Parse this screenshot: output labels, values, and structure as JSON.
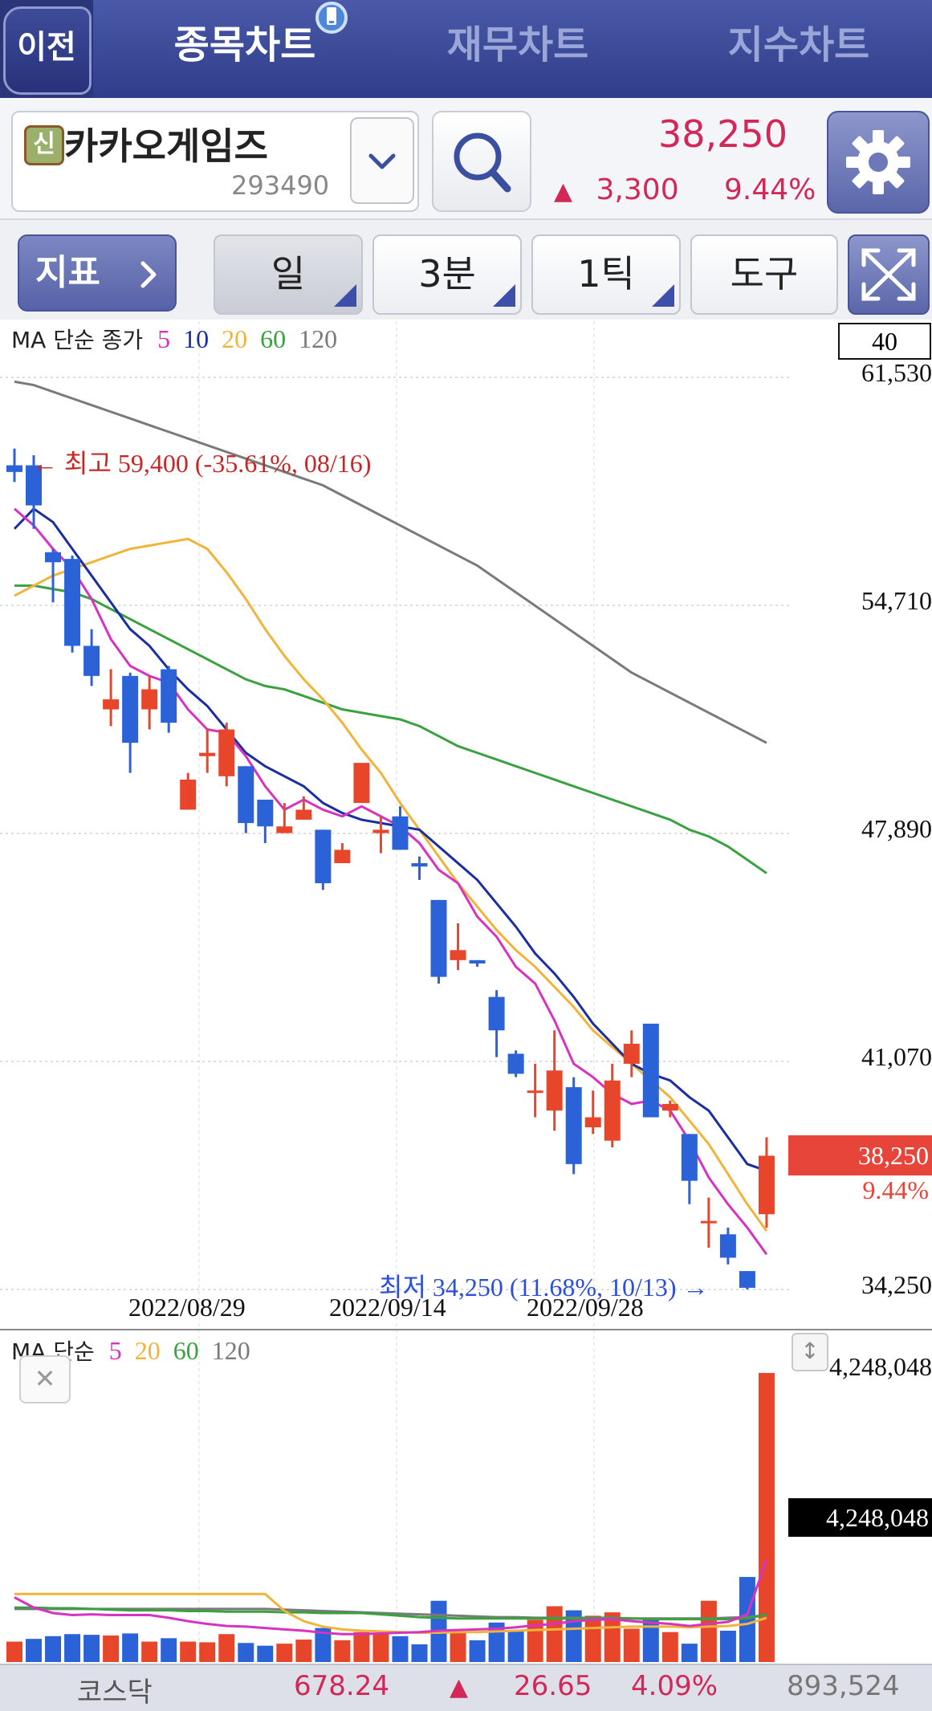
{
  "nav": {
    "back_label": "이전",
    "tabs": [
      "종목차트",
      "재무차트",
      "지수차트"
    ]
  },
  "stock": {
    "badge": "신",
    "name": "카카오게임즈",
    "code": "293490",
    "price": "38,250",
    "change_arrow": "▲",
    "change": "3,300",
    "change_pct": "9.44%"
  },
  "toolbar": {
    "indicator": "지표",
    "period": "일",
    "minute": "3분",
    "tick": "1틱",
    "tools": "도구"
  },
  "colors": {
    "up": "#e8462b",
    "down": "#2b62d8",
    "ma5": "#d633c0",
    "ma10": "#1b2ea0",
    "ma20": "#f0b43a",
    "ma60": "#3aa040",
    "ma120": "#7a7a7a"
  },
  "price_panel": {
    "legend_prefix": "MA 단순 종가",
    "legend_periods": [
      "5",
      "10",
      "20",
      "60",
      "120"
    ],
    "count_box": "40",
    "y_labels": [
      "61,530",
      "54,710",
      "47,890",
      "41,070",
      "34,250"
    ],
    "current_label": "38,250",
    "current_pct": "9.44%",
    "high_note": "최고 59,400 (-35.61%, 08/16)",
    "low_note": "최저 34,250 (11.68%, 10/13) →",
    "x_labels": [
      "2022/08/29",
      "2022/09/14",
      "2022/09/28"
    ]
  },
  "volume_panel": {
    "legend_prefix": "MA 단순",
    "legend_periods": [
      "5",
      "20",
      "60",
      "120"
    ],
    "top_label": "4,248,048",
    "current_label": "4,248,048",
    "close_symbol": "✕",
    "handle_symbol": "↕"
  },
  "chart_data": {
    "type": "candlestick",
    "ylim": [
      34250,
      61530
    ],
    "candles": [
      {
        "o": 58900,
        "h": 59400,
        "l": 58400,
        "c": 58700
      },
      {
        "o": 58900,
        "h": 59200,
        "l": 57000,
        "c": 57700
      },
      {
        "o": 56300,
        "h": 56400,
        "l": 54800,
        "c": 56000
      },
      {
        "o": 56100,
        "h": 56200,
        "l": 53300,
        "c": 53500
      },
      {
        "o": 53500,
        "h": 54000,
        "l": 52300,
        "c": 52600
      },
      {
        "o": 51600,
        "h": 52800,
        "l": 51100,
        "c": 51900
      },
      {
        "o": 52600,
        "h": 52700,
        "l": 49700,
        "c": 50600
      },
      {
        "o": 51600,
        "h": 52600,
        "l": 51000,
        "c": 52200
      },
      {
        "o": 52800,
        "h": 52900,
        "l": 50900,
        "c": 51200
      },
      {
        "o": 48600,
        "h": 49700,
        "l": 48600,
        "c": 49500
      },
      {
        "o": 50200,
        "h": 51000,
        "l": 49700,
        "c": 50300
      },
      {
        "o": 49600,
        "h": 51200,
        "l": 49300,
        "c": 51000
      },
      {
        "o": 49900,
        "h": 49900,
        "l": 47900,
        "c": 48200
      },
      {
        "o": 48900,
        "h": 48800,
        "l": 47600,
        "c": 48100
      },
      {
        "o": 47900,
        "h": 48800,
        "l": 47900,
        "c": 48100
      },
      {
        "o": 48300,
        "h": 49000,
        "l": 48300,
        "c": 48600
      },
      {
        "o": 48000,
        "h": 48000,
        "l": 46200,
        "c": 46400
      },
      {
        "o": 47000,
        "h": 47600,
        "l": 47000,
        "c": 47400
      },
      {
        "o": 48800,
        "h": 49900,
        "l": 48800,
        "c": 50000
      },
      {
        "o": 47900,
        "h": 48400,
        "l": 47300,
        "c": 48000
      },
      {
        "o": 48400,
        "h": 48700,
        "l": 47400,
        "c": 47400
      },
      {
        "o": 47000,
        "h": 47200,
        "l": 46500,
        "c": 46900
      },
      {
        "o": 45900,
        "h": 45900,
        "l": 43400,
        "c": 43600
      },
      {
        "o": 44100,
        "h": 45200,
        "l": 43800,
        "c": 44400
      },
      {
        "o": 44100,
        "h": 44100,
        "l": 43900,
        "c": 44000
      },
      {
        "o": 43000,
        "h": 43200,
        "l": 41200,
        "c": 42000
      },
      {
        "o": 41300,
        "h": 41400,
        "l": 40600,
        "c": 40700
      },
      {
        "o": 40200,
        "h": 41000,
        "l": 39400,
        "c": 40200
      },
      {
        "o": 39600,
        "h": 42000,
        "l": 39000,
        "c": 40800
      },
      {
        "o": 40300,
        "h": 40600,
        "l": 37700,
        "c": 38000
      },
      {
        "o": 39100,
        "h": 40200,
        "l": 38900,
        "c": 39400
      },
      {
        "o": 38700,
        "h": 41000,
        "l": 38500,
        "c": 40500
      },
      {
        "o": 41000,
        "h": 42000,
        "l": 40600,
        "c": 41600
      },
      {
        "o": 42200,
        "h": 42200,
        "l": 39400,
        "c": 39400
      },
      {
        "o": 39600,
        "h": 39900,
        "l": 39400,
        "c": 39800
      },
      {
        "o": 38900,
        "h": 38900,
        "l": 36800,
        "c": 37500
      },
      {
        "o": 36300,
        "h": 37000,
        "l": 35500,
        "c": 36300
      },
      {
        "o": 35900,
        "h": 36100,
        "l": 35000,
        "c": 35200
      },
      {
        "o": 34800,
        "h": 34800,
        "l": 34250,
        "c": 34300
      },
      {
        "o": 36500,
        "h": 38800,
        "l": 36100,
        "c": 38250
      }
    ],
    "ma5": [
      57600,
      57100,
      56400,
      55800,
      54900,
      53700,
      52900,
      52600,
      52400,
      51600,
      51000,
      50900,
      50200,
      49300,
      48600,
      48900,
      48600,
      48400,
      48700,
      48400,
      48100,
      47600,
      46800,
      46400,
      45400,
      44800,
      43900,
      43400,
      42300,
      41000,
      40600,
      40100,
      39800,
      39900,
      39600,
      38700,
      37600,
      36800,
      36100,
      35300
    ],
    "ma10": [
      57000,
      57600,
      57200,
      56400,
      55600,
      54800,
      54000,
      53500,
      52800,
      52200,
      51700,
      51000,
      50300,
      49900,
      49600,
      49300,
      48800,
      48500,
      48300,
      48200,
      48100,
      48000,
      47500,
      47000,
      46500,
      45800,
      45100,
      44300,
      43700,
      43000,
      42200,
      41600,
      41000,
      40700,
      40500,
      40000,
      39600,
      38800,
      38000,
      37800
    ],
    "ma20": [
      55000,
      55300,
      55600,
      55800,
      56000,
      56200,
      56400,
      56500,
      56600,
      56700,
      56400,
      55700,
      54900,
      54000,
      53200,
      52500,
      51900,
      51200,
      50400,
      49700,
      48800,
      48000,
      47200,
      46400,
      45700,
      45000,
      44400,
      43900,
      43300,
      42700,
      42000,
      41500,
      41000,
      40500,
      40000,
      39300,
      38600,
      37700,
      36800,
      36000
    ],
    "ma60": [
      55300,
      55300,
      55200,
      55100,
      54900,
      54600,
      54300,
      54000,
      53700,
      53400,
      53100,
      52800,
      52500,
      52300,
      52200,
      52000,
      51800,
      51600,
      51500,
      51400,
      51300,
      51100,
      50800,
      50500,
      50300,
      50100,
      49900,
      49700,
      49500,
      49300,
      49100,
      48900,
      48700,
      48500,
      48300,
      48000,
      47800,
      47500,
      47100,
      46700
    ],
    "ma120": [
      61400,
      61300,
      61100,
      60900,
      60700,
      60500,
      60300,
      60100,
      59900,
      59700,
      59500,
      59300,
      59100,
      58900,
      58700,
      58500,
      58300,
      58000,
      57700,
      57400,
      57100,
      56800,
      56500,
      56200,
      55900,
      55500,
      55100,
      54700,
      54300,
      53900,
      53500,
      53100,
      52700,
      52400,
      52100,
      51800,
      51500,
      51200,
      50900,
      50600
    ],
    "volume": {
      "max": 4248048,
      "values": [
        300000,
        340000,
        380000,
        410000,
        400000,
        390000,
        420000,
        300000,
        350000,
        300000,
        290000,
        410000,
        280000,
        240000,
        270000,
        330000,
        500000,
        320000,
        440000,
        420000,
        380000,
        260000,
        900000,
        450000,
        320000,
        580000,
        460000,
        620000,
        820000,
        760000,
        680000,
        730000,
        490000,
        620000,
        440000,
        270000,
        900000,
        460000,
        1250000,
        4248048
      ],
      "ma5": [
        950000,
        800000,
        720000,
        690000,
        700000,
        690000,
        690000,
        690000,
        650000,
        600000,
        560000,
        530000,
        520000,
        500000,
        480000,
        460000,
        430000,
        410000,
        410000,
        420000,
        430000,
        440000,
        460000,
        470000,
        480000,
        490000,
        510000,
        540000,
        560000,
        600000,
        620000,
        630000,
        600000,
        580000,
        560000,
        530000,
        560000,
        590000,
        700000,
        1500000
      ],
      "ma20": [
        1000000,
        1000000,
        1000000,
        1000000,
        1000000,
        1000000,
        1000000,
        1000000,
        1000000,
        1000000,
        1000000,
        1000000,
        1000000,
        1000000,
        750000,
        600000,
        520000,
        480000,
        460000,
        450000,
        440000,
        430000,
        430000,
        440000,
        440000,
        450000,
        460000,
        470000,
        480000,
        490000,
        500000,
        510000,
        520000,
        520000,
        520000,
        510000,
        520000,
        530000,
        560000,
        650000
      ],
      "ma60": [
        800000,
        800000,
        790000,
        790000,
        780000,
        770000,
        760000,
        760000,
        760000,
        750000,
        750000,
        740000,
        740000,
        740000,
        730000,
        730000,
        720000,
        720000,
        720000,
        700000,
        680000,
        660000,
        650000,
        640000,
        640000,
        640000,
        640000,
        640000,
        640000,
        640000,
        640000,
        640000,
        640000,
        630000,
        630000,
        630000,
        630000,
        630000,
        640000,
        700000
      ],
      "ma120": [
        780000,
        780000,
        780000,
        780000,
        780000,
        780000,
        780000,
        780000,
        780000,
        780000,
        780000,
        780000,
        780000,
        780000,
        770000,
        760000,
        750000,
        740000,
        730000,
        720000,
        710000,
        700000,
        690000,
        680000,
        670000,
        660000,
        660000,
        650000,
        650000,
        650000,
        650000,
        650000,
        640000,
        640000,
        640000,
        640000,
        640000,
        650000,
        660000,
        690000
      ]
    }
  },
  "footer": {
    "market": "코스닥",
    "index": "678.24",
    "arrow": "▲",
    "change": "26.65",
    "pct": "4.09%",
    "volume": "893,524"
  }
}
